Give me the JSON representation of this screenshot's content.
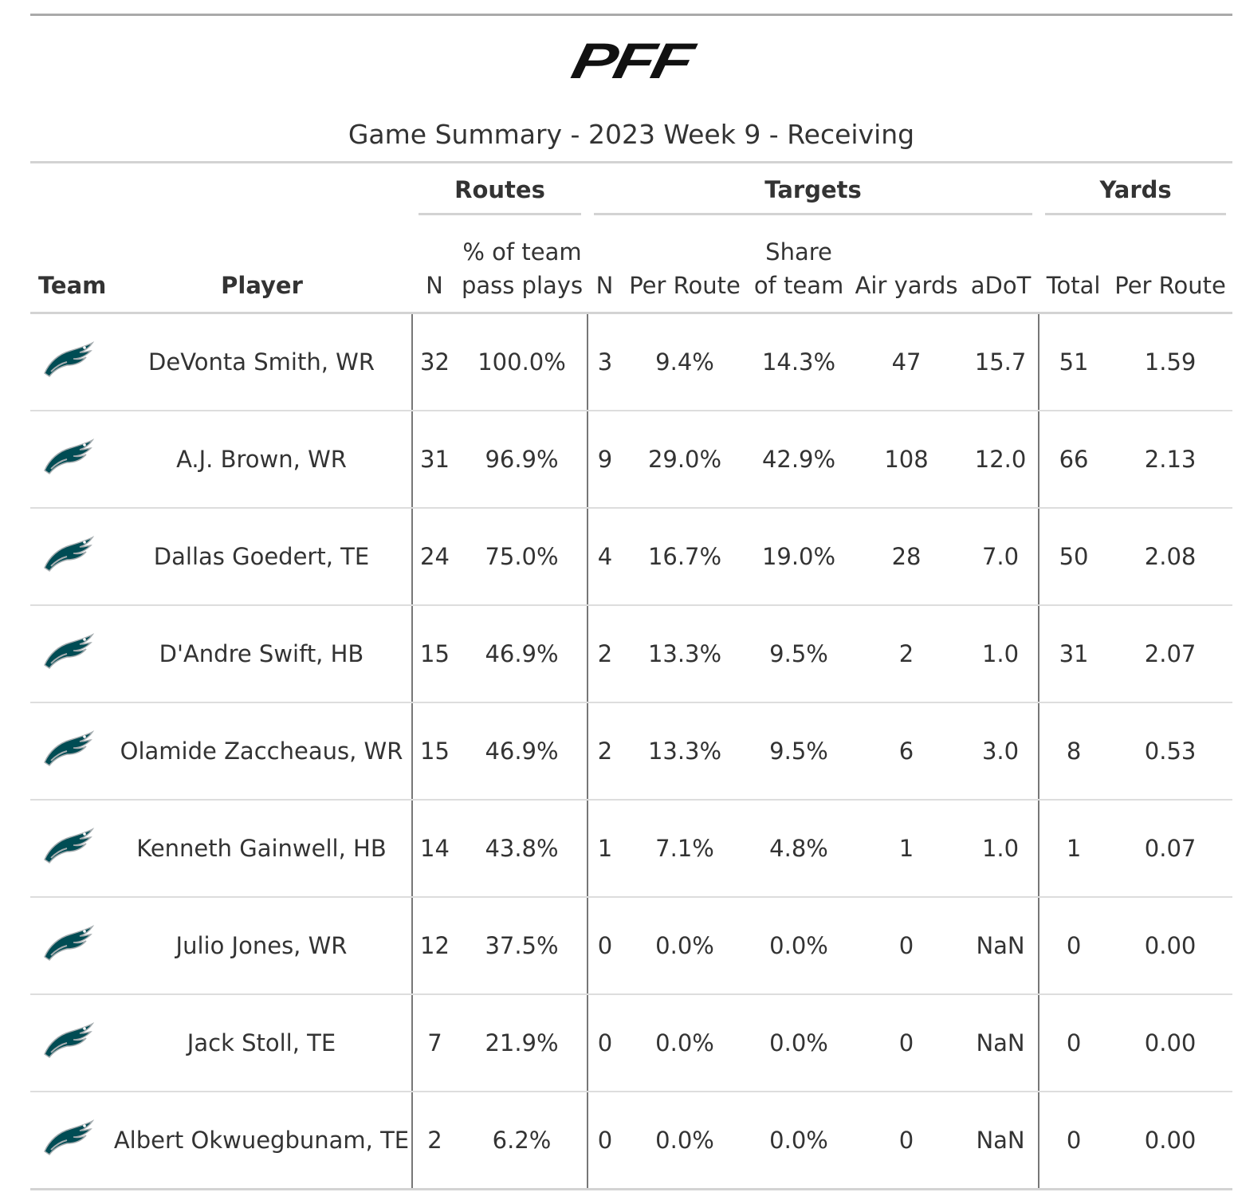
{
  "header": {
    "logo": "PFF",
    "title": "Game Summary - 2023 Week 9 - Receiving"
  },
  "table": {
    "spanners": [
      {
        "label": "Routes",
        "columns": [
          2,
          3
        ]
      },
      {
        "label": "Targets",
        "columns": [
          4,
          5,
          6,
          7,
          8
        ]
      },
      {
        "label": "Yards",
        "columns": [
          9,
          10
        ]
      }
    ],
    "columns": [
      [
        "Team"
      ],
      [
        "Player"
      ],
      [
        "N"
      ],
      [
        "% of team",
        "pass plays"
      ],
      [
        "N"
      ],
      [
        "Per Route"
      ],
      [
        "Share",
        "of team"
      ],
      [
        "Air yards"
      ],
      [
        "aDoT"
      ],
      [
        "Total"
      ],
      [
        "Per Route"
      ]
    ],
    "rows": [
      [
        "DeVonta Smith, WR",
        "32",
        "100.0%",
        "3",
        "9.4%",
        "14.3%",
        "47",
        "15.7",
        "51",
        "1.59"
      ],
      [
        "A.J. Brown, WR",
        "31",
        "96.9%",
        "9",
        "29.0%",
        "42.9%",
        "108",
        "12.0",
        "66",
        "2.13"
      ],
      [
        "Dallas Goedert, TE",
        "24",
        "75.0%",
        "4",
        "16.7%",
        "19.0%",
        "28",
        "7.0",
        "50",
        "2.08"
      ],
      [
        "D'Andre Swift, HB",
        "15",
        "46.9%",
        "2",
        "13.3%",
        "9.5%",
        "2",
        "1.0",
        "31",
        "2.07"
      ],
      [
        "Olamide Zaccheaus, WR",
        "15",
        "46.9%",
        "2",
        "13.3%",
        "9.5%",
        "6",
        "3.0",
        "8",
        "0.53"
      ],
      [
        "Kenneth Gainwell, HB",
        "14",
        "43.8%",
        "1",
        "7.1%",
        "4.8%",
        "1",
        "1.0",
        "1",
        "0.07"
      ],
      [
        "Julio Jones, WR",
        "12",
        "37.5%",
        "0",
        "0.0%",
        "0.0%",
        "0",
        "NaN",
        "0",
        "0.00"
      ],
      [
        "Jack Stoll, TE",
        "7",
        "21.9%",
        "0",
        "0.0%",
        "0.0%",
        "0",
        "NaN",
        "0",
        "0.00"
      ],
      [
        "Albert Okwuegbunam, TE",
        "2",
        "6.2%",
        "0",
        "0.0%",
        "0.0%",
        "0",
        "NaN",
        "0",
        "0.00"
      ]
    ]
  }
}
